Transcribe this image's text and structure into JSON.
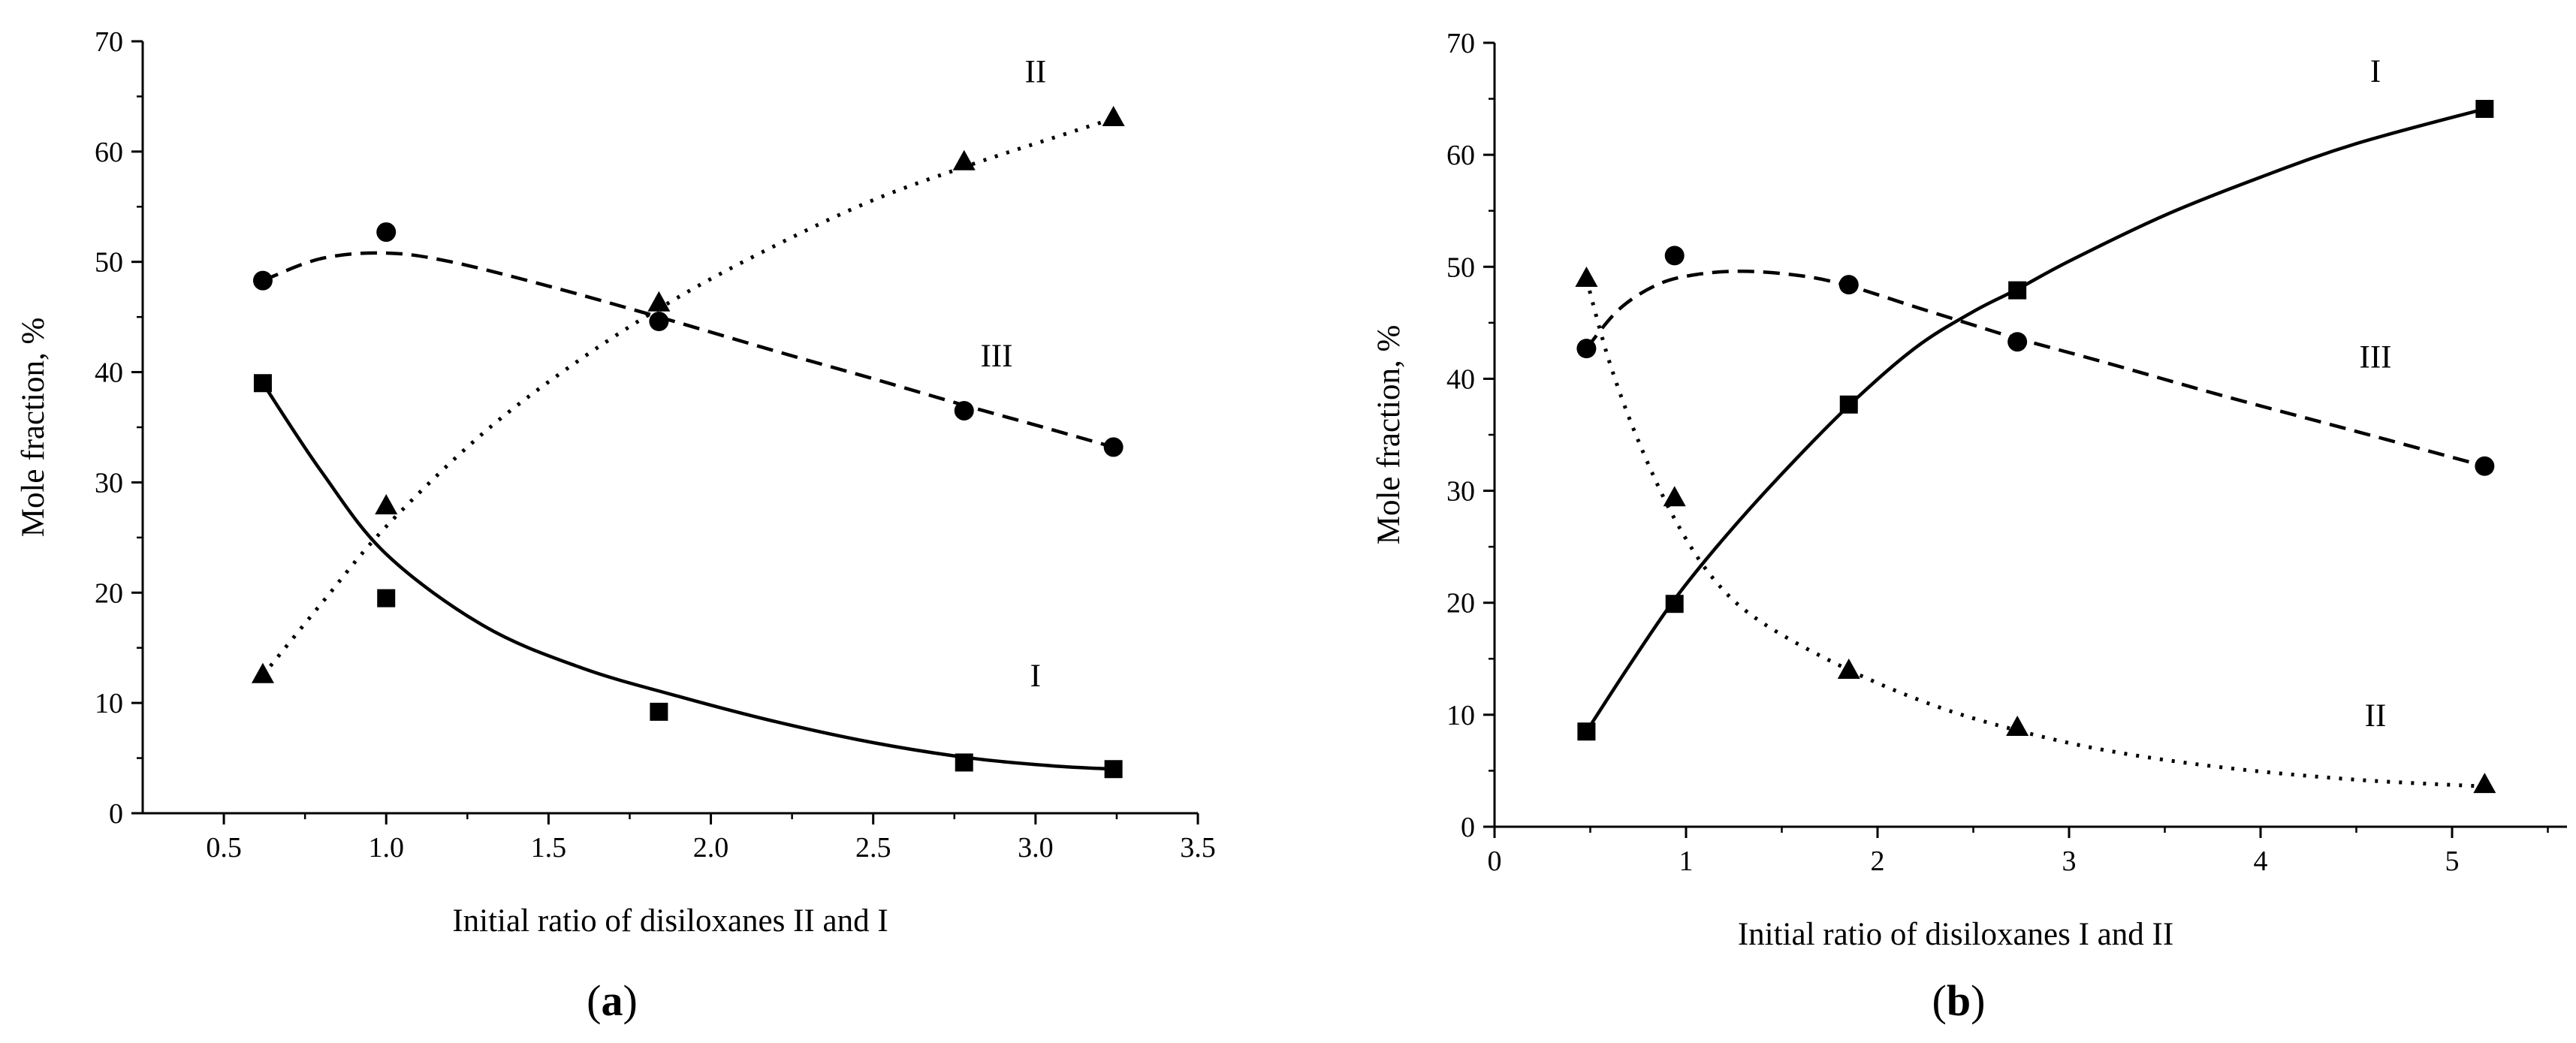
{
  "chart_data": [
    {
      "type": "line",
      "panel_label": "a",
      "xlabel": "Initial ratio of disiloxanes II and I",
      "ylabel": "Mole fraction, %",
      "xlim": [
        0.25,
        3.5
      ],
      "ylim": [
        0,
        70
      ],
      "xticks": [
        0.5,
        1.0,
        1.5,
        2.0,
        2.5,
        3.0,
        3.5
      ],
      "xtick_labels": [
        "0.5",
        "1.0",
        "1.5",
        "2.0",
        "2.5",
        "3.0",
        "3.5"
      ],
      "yticks": [
        0,
        10,
        20,
        30,
        40,
        50,
        60,
        70
      ],
      "ytick_labels": [
        "0",
        "10",
        "20",
        "30",
        "40",
        "50",
        "60",
        "70"
      ],
      "series": [
        {
          "name": "I",
          "marker": "square",
          "line_style": "solid",
          "x": [
            0.62,
            1.0,
            1.84,
            2.78,
            3.24
          ],
          "values": [
            39,
            19.5,
            9.2,
            4.6,
            4.0
          ],
          "fit": [
            [
              0.62,
              39
            ],
            [
              0.8,
              31
            ],
            [
              1.0,
              23.5
            ],
            [
              1.3,
              17
            ],
            [
              1.6,
              13.2
            ],
            [
              1.9,
              10.6
            ],
            [
              2.2,
              8.3
            ],
            [
              2.5,
              6.4
            ],
            [
              2.8,
              5.0
            ],
            [
              3.05,
              4.3
            ],
            [
              3.24,
              4.0
            ]
          ],
          "label_pos": {
            "x": 3.0,
            "y": 11.5
          }
        },
        {
          "name": "II",
          "marker": "triangle",
          "line_style": "dotted",
          "x": [
            0.62,
            1.0,
            1.84,
            2.78,
            3.24
          ],
          "values": [
            12.5,
            27.8,
            46.2,
            59.0,
            63.0
          ],
          "fit": [
            [
              0.62,
              12.5
            ],
            [
              0.8,
              19
            ],
            [
              1.0,
              26
            ],
            [
              1.3,
              34.5
            ],
            [
              1.6,
              41.2
            ],
            [
              1.9,
              46.8
            ],
            [
              2.2,
              51.5
            ],
            [
              2.5,
              55.6
            ],
            [
              2.8,
              58.8
            ],
            [
              3.05,
              61.2
            ],
            [
              3.24,
              63.0
            ]
          ],
          "label_pos": {
            "x": 3.0,
            "y": 66.3
          }
        },
        {
          "name": "III",
          "marker": "circle",
          "line_style": "dashed",
          "x": [
            0.62,
            1.0,
            1.84,
            2.78,
            3.24
          ],
          "values": [
            48.3,
            52.7,
            44.6,
            36.5,
            33.2
          ],
          "fit": [
            [
              0.62,
              48.3
            ],
            [
              0.8,
              50.3
            ],
            [
              1.0,
              50.8
            ],
            [
              1.2,
              50.0
            ],
            [
              1.5,
              47.8
            ],
            [
              1.84,
              45.0
            ],
            [
              2.2,
              41.9
            ],
            [
              2.5,
              39.4
            ],
            [
              2.78,
              37.0
            ],
            [
              3.0,
              35.2
            ],
            [
              3.24,
              33.2
            ]
          ],
          "label_pos": {
            "x": 2.88,
            "y": 40.5
          }
        }
      ]
    },
    {
      "type": "line",
      "panel_label": "b",
      "xlabel": "Initial ratio of disiloxanes I and II",
      "ylabel": "Mole fraction, %",
      "xlim": [
        0,
        5.6
      ],
      "ylim": [
        0,
        70
      ],
      "xticks": [
        0,
        1,
        2,
        3,
        4,
        5
      ],
      "xtick_labels": [
        "0",
        "1",
        "2",
        "3",
        "4",
        "5"
      ],
      "yticks": [
        0,
        10,
        20,
        30,
        40,
        50,
        60,
        70
      ],
      "ytick_labels": [
        "0",
        "10",
        "20",
        "30",
        "40",
        "50",
        "60",
        "70"
      ],
      "series": [
        {
          "name": "I",
          "marker": "square",
          "line_style": "solid",
          "x": [
            0.48,
            0.94,
            1.85,
            2.73,
            5.17
          ],
          "values": [
            8.5,
            19.9,
            37.7,
            47.9,
            64.1
          ],
          "fit": [
            [
              0.48,
              8.5
            ],
            [
              0.7,
              14.3
            ],
            [
              0.94,
              20.3
            ],
            [
              1.2,
              25.8
            ],
            [
              1.5,
              31.5
            ],
            [
              1.85,
              37.6
            ],
            [
              2.2,
              42.8
            ],
            [
              2.5,
              46.0
            ],
            [
              2.73,
              48.0
            ],
            [
              3.0,
              50.5
            ],
            [
              3.5,
              54.6
            ],
            [
              4.0,
              58.0
            ],
            [
              4.5,
              61.0
            ],
            [
              5.17,
              64.1
            ]
          ],
          "label_pos": {
            "x": 4.6,
            "y": 66.5
          }
        },
        {
          "name": "II",
          "marker": "triangle",
          "line_style": "dotted",
          "x": [
            0.48,
            0.94,
            1.85,
            2.73,
            5.17
          ],
          "values": [
            48.9,
            29.3,
            13.9,
            8.8,
            3.7
          ],
          "fit": [
            [
              0.48,
              48.9
            ],
            [
              0.6,
              41.5
            ],
            [
              0.75,
              34.5
            ],
            [
              0.94,
              27.5
            ],
            [
              1.15,
              22.0
            ],
            [
              1.4,
              18.2
            ],
            [
              1.85,
              14.0
            ],
            [
              2.3,
              10.8
            ],
            [
              2.73,
              8.6
            ],
            [
              3.2,
              6.8
            ],
            [
              3.8,
              5.3
            ],
            [
              4.5,
              4.2
            ],
            [
              5.17,
              3.6
            ]
          ],
          "label_pos": {
            "x": 4.6,
            "y": 9.0
          }
        },
        {
          "name": "III",
          "marker": "circle",
          "line_style": "dashed",
          "x": [
            0.48,
            0.94,
            1.85,
            2.73,
            5.17
          ],
          "values": [
            42.7,
            51.0,
            48.4,
            43.3,
            32.2
          ],
          "fit": [
            [
              0.48,
              42.7
            ],
            [
              0.65,
              46.2
            ],
            [
              0.85,
              48.4
            ],
            [
              1.05,
              49.3
            ],
            [
              1.3,
              49.6
            ],
            [
              1.6,
              49.2
            ],
            [
              1.85,
              48.3
            ],
            [
              2.2,
              46.4
            ],
            [
              2.5,
              44.8
            ],
            [
              2.73,
              43.6
            ],
            [
              3.2,
              41.4
            ],
            [
              3.8,
              38.5
            ],
            [
              4.5,
              35.3
            ],
            [
              5.17,
              32.2
            ]
          ],
          "label_pos": {
            "x": 4.6,
            "y": 41.0
          }
        }
      ]
    }
  ]
}
